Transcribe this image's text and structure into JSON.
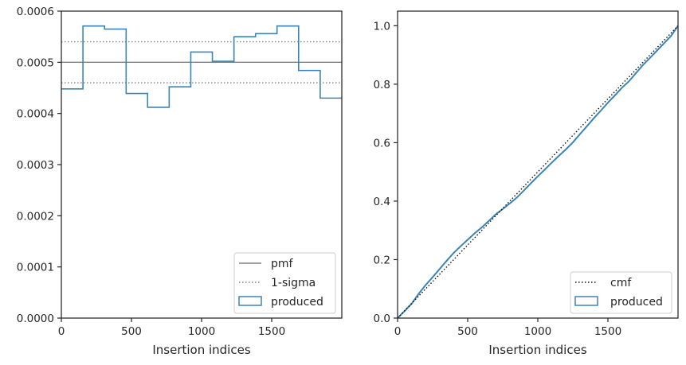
{
  "colors": {
    "produced": "#3a85b5",
    "pmf": "#808080",
    "sigma": "#808080",
    "cmf": "#111111",
    "axes": "#262626"
  },
  "chart_data": [
    {
      "type": "step",
      "xlabel": "Insertion indices",
      "ylabel": "",
      "xlim": [
        0,
        2000
      ],
      "ylim": [
        0,
        0.0006
      ],
      "xticks": [
        {
          "value": 0,
          "label": "0"
        },
        {
          "value": 500,
          "label": "500"
        },
        {
          "value": 1000,
          "label": "1000"
        },
        {
          "value": 1500,
          "label": "1500"
        }
      ],
      "yticks": [
        {
          "value": 0,
          "label": "0.0000"
        },
        {
          "value": 0.0001,
          "label": "0.0001"
        },
        {
          "value": 0.0002,
          "label": "0.0002"
        },
        {
          "value": 0.0003,
          "label": "0.0003"
        },
        {
          "value": 0.0004,
          "label": "0.0004"
        },
        {
          "value": 0.0005,
          "label": "0.0005"
        },
        {
          "value": 0.0006,
          "label": "0.0006"
        }
      ],
      "bin_edges": [
        0,
        154,
        308,
        462,
        615,
        769,
        923,
        1077,
        1231,
        1385,
        1538,
        1692,
        1846,
        2000
      ],
      "values": [
        0.000448,
        0.000571,
        0.000565,
        0.000439,
        0.000412,
        0.000452,
        0.00052,
        0.000502,
        0.00055,
        0.000556,
        0.000571,
        0.000484,
        0.00043
      ],
      "pmf": 0.0005,
      "sigma_lower": 0.00046,
      "sigma_upper": 0.00054,
      "legend": {
        "position": "lower right",
        "entries": [
          {
            "label": "pmf",
            "style": "solid-line"
          },
          {
            "label": "1-sigma",
            "style": "dotted-line"
          },
          {
            "label": "produced",
            "style": "box"
          }
        ]
      }
    },
    {
      "type": "line",
      "xlabel": "Insertion indices",
      "ylabel": "",
      "xlim": [
        0,
        2000
      ],
      "ylim": [
        0,
        1.05
      ],
      "xticks": [
        {
          "value": 0,
          "label": "0"
        },
        {
          "value": 500,
          "label": "500"
        },
        {
          "value": 1000,
          "label": "1000"
        },
        {
          "value": 1500,
          "label": "1500"
        }
      ],
      "yticks": [
        {
          "value": 0,
          "label": "0.0"
        },
        {
          "value": 0.2,
          "label": "0.2"
        },
        {
          "value": 0.4,
          "label": "0.4"
        },
        {
          "value": 0.6,
          "label": "0.6"
        },
        {
          "value": 0.8,
          "label": "0.8"
        },
        {
          "value": 1.0,
          "label": "1.0"
        }
      ],
      "cmf": {
        "x": [
          0,
          2000
        ],
        "y": [
          0,
          1
        ]
      },
      "produced": {
        "x": [
          0,
          50,
          100,
          150,
          200,
          250,
          300,
          350,
          400,
          450,
          500,
          550,
          600,
          650,
          700,
          750,
          800,
          850,
          900,
          950,
          1000,
          1050,
          1100,
          1150,
          1200,
          1250,
          1300,
          1350,
          1400,
          1450,
          1500,
          1550,
          1600,
          1650,
          1700,
          1750,
          1800,
          1850,
          1900,
          1950,
          2000
        ],
        "y": [
          0.0,
          0.024,
          0.049,
          0.083,
          0.113,
          0.14,
          0.168,
          0.196,
          0.223,
          0.246,
          0.268,
          0.29,
          0.31,
          0.332,
          0.355,
          0.373,
          0.392,
          0.412,
          0.436,
          0.461,
          0.485,
          0.508,
          0.532,
          0.555,
          0.577,
          0.601,
          0.629,
          0.656,
          0.684,
          0.71,
          0.737,
          0.762,
          0.788,
          0.81,
          0.838,
          0.866,
          0.89,
          0.915,
          0.94,
          0.965,
          1.0
        ]
      },
      "legend": {
        "position": "lower right",
        "entries": [
          {
            "label": "cmf",
            "style": "dotted-line"
          },
          {
            "label": "produced",
            "style": "box"
          }
        ]
      }
    }
  ]
}
